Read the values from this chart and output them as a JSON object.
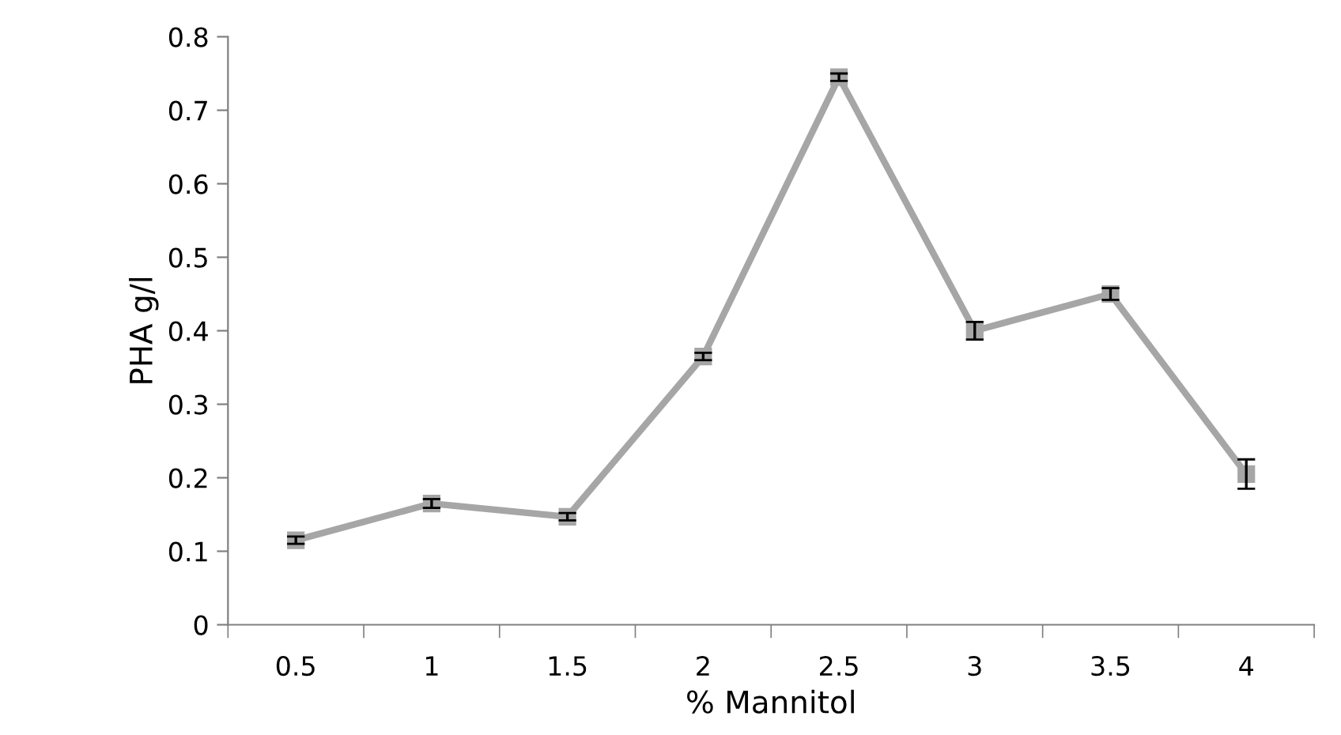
{
  "chart_data": {
    "type": "line",
    "xlabel": "% Mannitol",
    "ylabel": "PHA g/l",
    "categories": [
      "0.5",
      "1",
      "1.5",
      "2",
      "2.5",
      "3",
      "3.5",
      "4"
    ],
    "series": [
      {
        "color": "#a6a6a6",
        "values": [
          0.115,
          0.165,
          0.147,
          0.365,
          0.745,
          0.4,
          0.45,
          0.205
        ],
        "errors": [
          0.005,
          0.006,
          0.005,
          0.005,
          0.005,
          0.012,
          0.008,
          0.02
        ]
      }
    ],
    "ylim": [
      0,
      0.8
    ],
    "yticks": [
      0,
      0.1,
      0.2,
      0.3,
      0.4,
      0.5,
      0.6,
      0.7,
      0.8
    ],
    "marker": "square",
    "line_style": "solid",
    "grid": false,
    "legend": false
  }
}
